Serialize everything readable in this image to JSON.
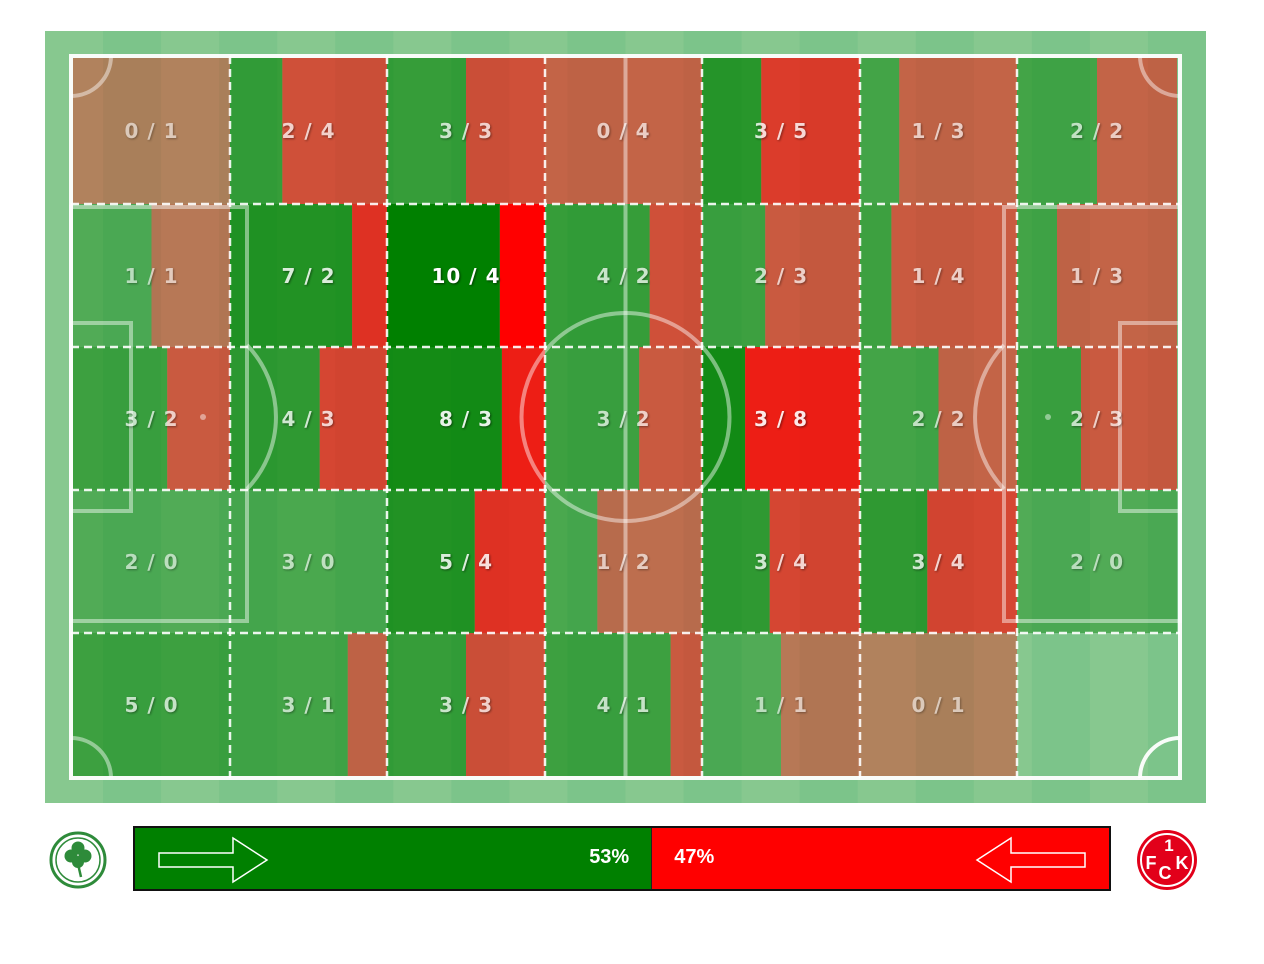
{
  "chart_data": {
    "type": "heatmap",
    "title": "",
    "rows": 5,
    "cols": 7,
    "cells": [
      [
        [
          0,
          1
        ],
        [
          2,
          4
        ],
        [
          3,
          3
        ],
        [
          0,
          4
        ],
        [
          3,
          5
        ],
        [
          1,
          3
        ],
        [
          2,
          2
        ]
      ],
      [
        [
          1,
          1
        ],
        [
          7,
          2
        ],
        [
          10,
          4
        ],
        [
          4,
          2
        ],
        [
          2,
          3
        ],
        [
          1,
          4
        ],
        [
          1,
          3
        ]
      ],
      [
        [
          3,
          2
        ],
        [
          4,
          3
        ],
        [
          8,
          3
        ],
        [
          3,
          2
        ],
        [
          3,
          8
        ],
        [
          2,
          2
        ],
        [
          2,
          3
        ]
      ],
      [
        [
          2,
          0
        ],
        [
          3,
          0
        ],
        [
          5,
          4
        ],
        [
          1,
          2
        ],
        [
          3,
          4
        ],
        [
          3,
          4
        ],
        [
          2,
          0
        ]
      ],
      [
        [
          5,
          0
        ],
        [
          3,
          1
        ],
        [
          3,
          3
        ],
        [
          4,
          1
        ],
        [
          1,
          1
        ],
        [
          0,
          1
        ],
        [
          0,
          0
        ]
      ]
    ],
    "labels": [
      [
        "0 / 1",
        "2 / 4",
        "3 / 3",
        "0 / 4",
        "3 / 5",
        "1 / 3",
        "2 / 2"
      ],
      [
        "1 / 1",
        "7 / 2",
        "10 / 4",
        "4 / 2",
        "2 / 3",
        "1 / 4",
        "1 / 3"
      ],
      [
        "3 / 2",
        "4 / 3",
        "8 / 3",
        "3 / 2",
        "3 / 8",
        "2 / 2",
        "2 / 3"
      ],
      [
        "2 / 0",
        "3 / 0",
        "5 / 4",
        "1 / 2",
        "3 / 4",
        "3 / 4",
        "2 / 0"
      ],
      [
        "5 / 0",
        "3 / 1",
        "3 / 3",
        "4 / 1",
        "1 / 1",
        "0 / 1",
        ""
      ]
    ],
    "max_total": 14,
    "colors": {
      "home": "#008000",
      "away": "#ff0000",
      "pitch_dark": "#7cc48a",
      "pitch_light": "#8fcc94"
    }
  },
  "possession": {
    "home_pct": 53,
    "away_pct": 47,
    "home_label": "53%",
    "away_label": "47%",
    "home_color": "#008000",
    "away_color": "#ff0000"
  },
  "teams": {
    "home_icon": "shamrock-crest-icon",
    "away_icon": "fck-crest-icon",
    "away_logo_text": {
      "one": "1",
      "f": "F",
      "c": "C",
      "k": "K"
    }
  }
}
